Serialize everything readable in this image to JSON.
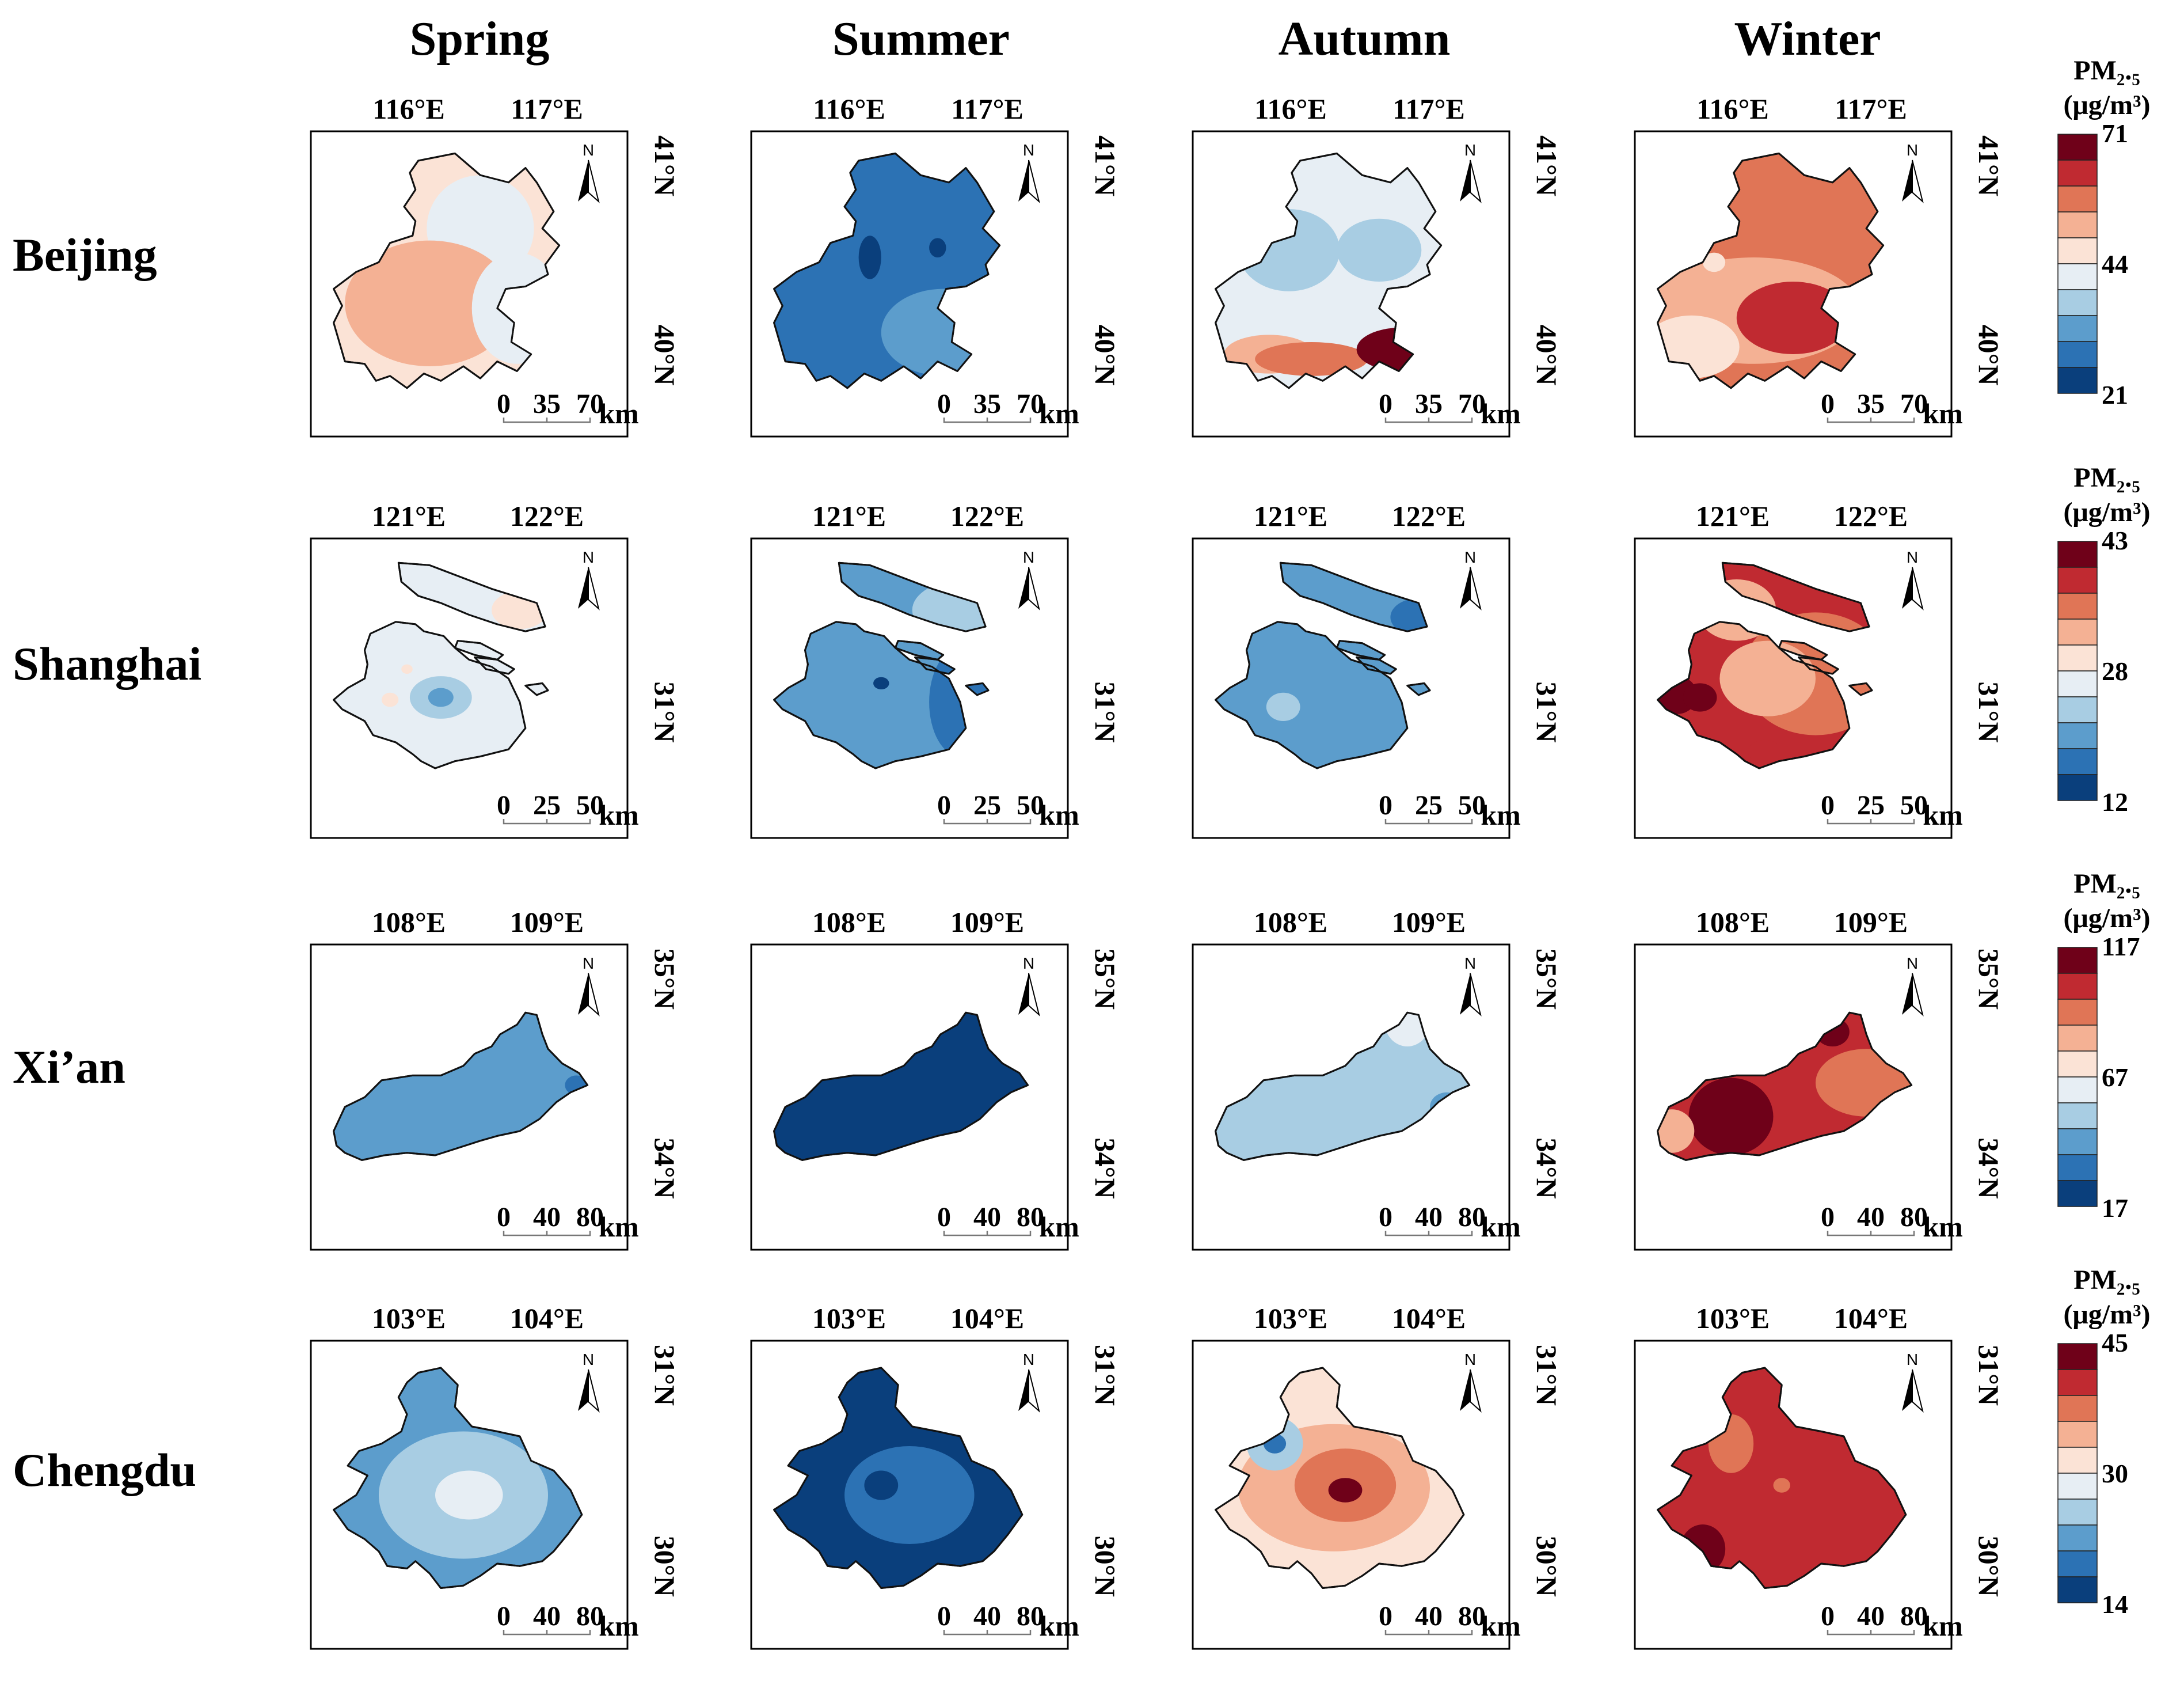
{
  "seasons": [
    "Spring",
    "Summer",
    "Autumn",
    "Winter"
  ],
  "north_label": "N",
  "units": {
    "km": "km"
  },
  "palette": [
    "#0a3f7c",
    "#2c72b4",
    "#5c9dcc",
    "#a8cde3",
    "#e7eef4",
    "#fbe3d6",
    "#f4b194",
    "#e07556",
    "#c02a31",
    "#6f0119"
  ],
  "cities": [
    {
      "name": "Beijing",
      "lon_ticks": [
        "116°E",
        "117°E"
      ],
      "lat_ticks": [
        "41°N",
        "40°N"
      ],
      "scale": [
        "0",
        "35",
        "70"
      ],
      "legend": {
        "title_line1": "PM₂.₅",
        "title_line2": "(μg/m³)",
        "max": "71",
        "mid": "44",
        "min": "21"
      },
      "seasonal_map_levels": {
        "Spring": {
          "base": 5,
          "patches": [
            4,
            6,
            4
          ]
        },
        "Summer": {
          "base": 1,
          "patches": [
            0,
            0,
            2
          ]
        },
        "Autumn": {
          "base": 4,
          "patches": [
            3,
            3,
            6,
            7,
            9
          ]
        },
        "Winter": {
          "base": 7,
          "patches": [
            6,
            8,
            5,
            5
          ]
        }
      }
    },
    {
      "name": "Shanghai",
      "lon_ticks": [
        "121°E",
        "122°E"
      ],
      "lat_ticks": [
        "31°N"
      ],
      "scale": [
        "0",
        "25",
        "50"
      ],
      "legend": {
        "title_line1": "PM₂.₅",
        "title_line2": "(μg/m³)",
        "max": "43",
        "mid": "28",
        "min": "12"
      },
      "seasonal_map_levels": {
        "Spring": {
          "base": 4,
          "patches": [
            3,
            2,
            5,
            5,
            5
          ]
        },
        "Summer": {
          "base": 2,
          "patches": [
            1,
            1,
            3,
            0
          ]
        },
        "Autumn": {
          "base": 2,
          "patches": [
            1,
            3,
            1
          ]
        },
        "Winter": {
          "base": 8,
          "patches": [
            7,
            6,
            6,
            9,
            9,
            8
          ]
        }
      }
    },
    {
      "name": "Xi’an",
      "lon_ticks": [
        "108°E",
        "109°E"
      ],
      "lat_ticks": [
        "35°N",
        "34°N"
      ],
      "scale": [
        "0",
        "40",
        "80"
      ],
      "legend": {
        "title_line1": "PM₂.₅",
        "title_line2": "(μg/m³)",
        "max": "117",
        "mid": "67",
        "min": "17"
      },
      "seasonal_map_levels": {
        "Spring": {
          "base": 2,
          "patches": [
            1
          ]
        },
        "Summer": {
          "base": 0,
          "patches": []
        },
        "Autumn": {
          "base": 3,
          "patches": [
            4,
            2
          ]
        },
        "Winter": {
          "base": 8,
          "patches": [
            9,
            7,
            6,
            9
          ]
        }
      }
    },
    {
      "name": "Chengdu",
      "lon_ticks": [
        "103°E",
        "104°E"
      ],
      "lat_ticks": [
        "31°N",
        "30°N"
      ],
      "scale": [
        "0",
        "40",
        "80"
      ],
      "legend": {
        "title_line1": "PM₂.₅",
        "title_line2": "(μg/m³)",
        "max": "45",
        "mid": "30",
        "min": "14"
      },
      "seasonal_map_levels": {
        "Spring": {
          "base": 2,
          "patches": [
            3,
            4
          ]
        },
        "Summer": {
          "base": 0,
          "patches": [
            1,
            0
          ]
        },
        "Autumn": {
          "base": 5,
          "patches": [
            6,
            7,
            9,
            3,
            1
          ]
        },
        "Winter": {
          "base": 8,
          "patches": [
            7,
            7,
            9
          ]
        }
      }
    }
  ]
}
